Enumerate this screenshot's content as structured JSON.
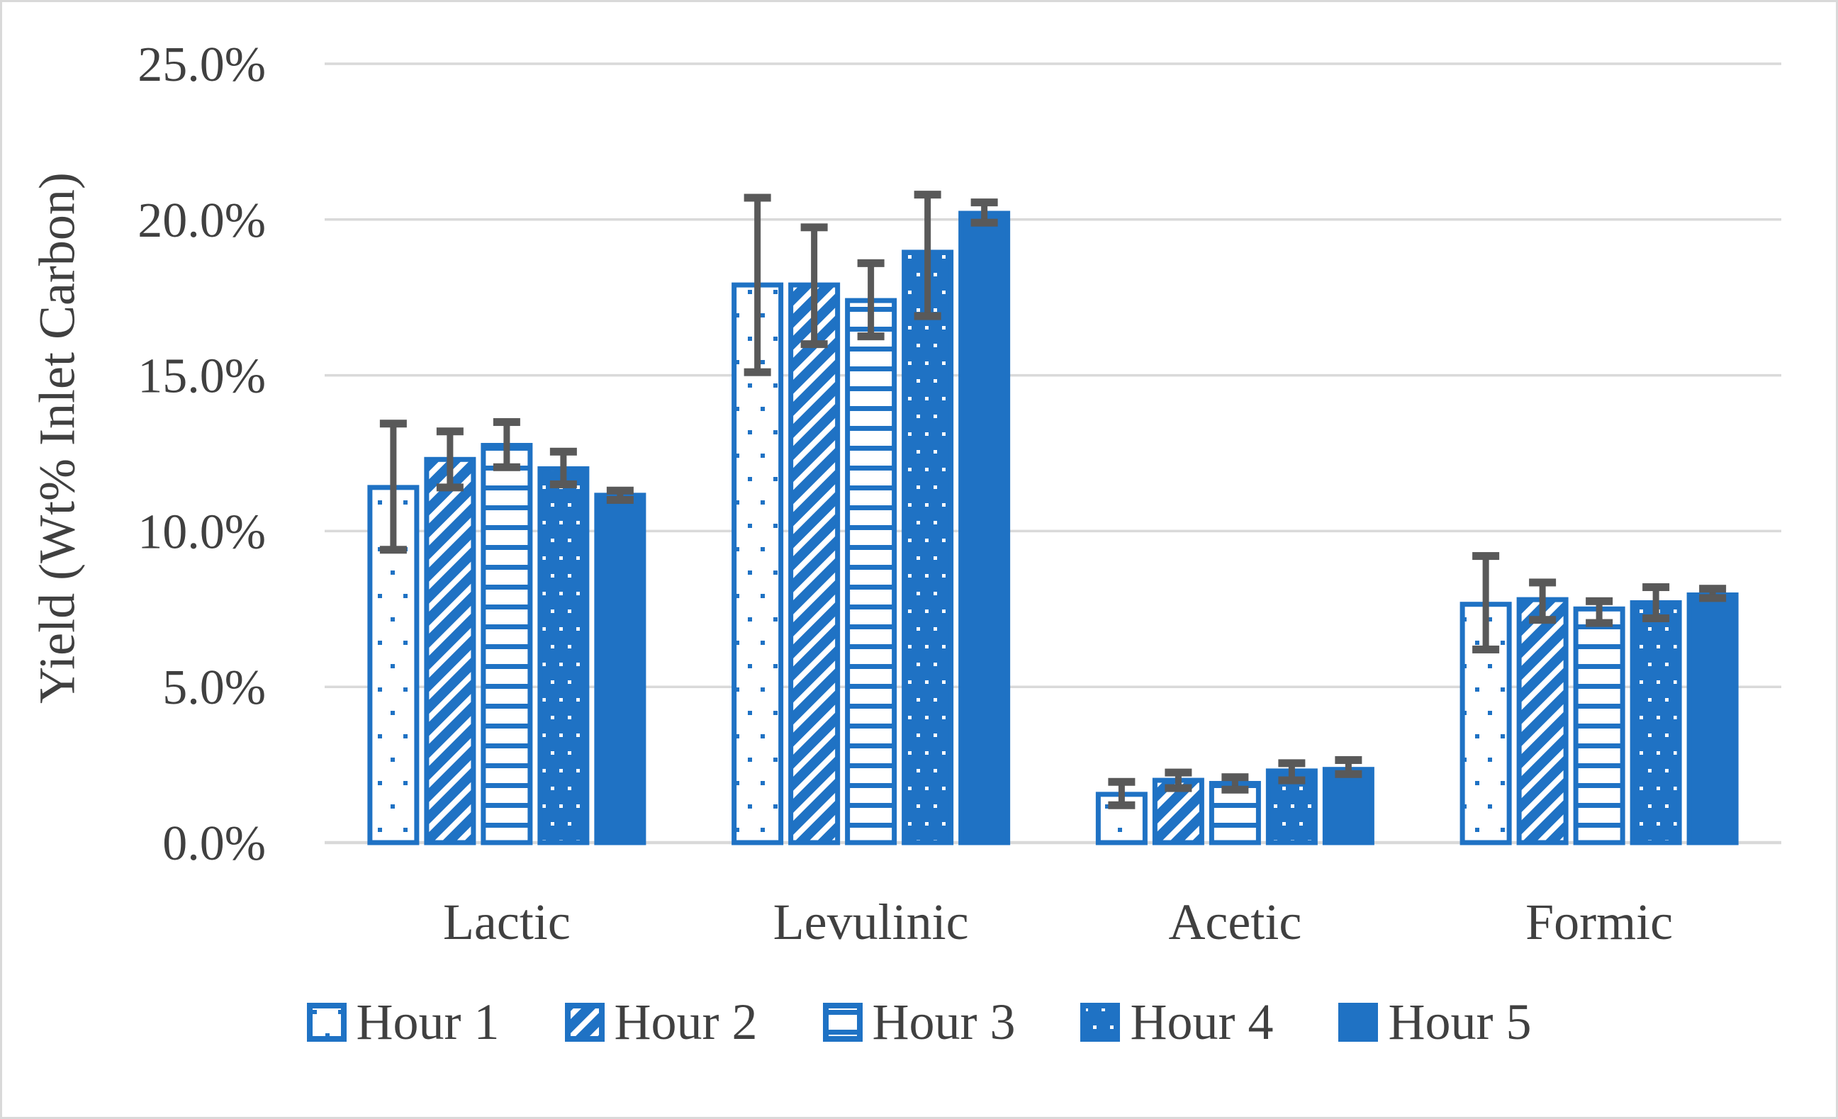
{
  "chart_data": {
    "type": "bar",
    "title": "",
    "xlabel": "",
    "ylabel": "Yield (Wt% Inlet Carbon)",
    "ylim": [
      0,
      25
    ],
    "ytick_step": 5,
    "ytick_labels": [
      "0.0%",
      "5.0%",
      "10.0%",
      "15.0%",
      "20.0%",
      "25.0%"
    ],
    "grid": true,
    "legend_position": "bottom",
    "categories": [
      "Lactic",
      "Levulinic",
      "Acetic",
      "Formic"
    ],
    "series": [
      {
        "name": "Hour 1",
        "pattern": "sparse-dots",
        "values": [
          11.4,
          17.9,
          1.55,
          7.65
        ],
        "err_low": [
          9.4,
          15.1,
          1.2,
          6.2
        ],
        "err_high": [
          13.45,
          20.7,
          1.95,
          9.2
        ]
      },
      {
        "name": "Hour 2",
        "pattern": "diagonal-hatch",
        "values": [
          12.3,
          17.9,
          2.0,
          7.8
        ],
        "err_low": [
          11.4,
          16.0,
          1.75,
          7.15
        ],
        "err_high": [
          13.2,
          19.75,
          2.25,
          8.35
        ]
      },
      {
        "name": "Hour 3",
        "pattern": "horizontal-lines",
        "values": [
          12.75,
          17.4,
          1.9,
          7.5
        ],
        "err_low": [
          12.05,
          16.25,
          1.7,
          7.05
        ],
        "err_high": [
          13.5,
          18.6,
          2.1,
          7.75
        ]
      },
      {
        "name": "Hour 4",
        "pattern": "dense-white-dots",
        "values": [
          12.0,
          18.95,
          2.3,
          7.7
        ],
        "err_low": [
          11.5,
          16.9,
          2.0,
          7.2
        ],
        "err_high": [
          12.55,
          20.8,
          2.55,
          8.2
        ]
      },
      {
        "name": "Hour 5",
        "pattern": "solid",
        "values": [
          11.15,
          20.2,
          2.35,
          7.95
        ],
        "err_low": [
          11.0,
          19.9,
          2.2,
          7.85
        ],
        "err_high": [
          11.3,
          20.55,
          2.65,
          8.15
        ]
      }
    ],
    "colors": {
      "bar_blue": "#1F72C4",
      "error_bar": "#595959",
      "gridline": "#D9D9D9",
      "text": "#404040",
      "background": "#FFFFFF",
      "border": "#D9D9D9"
    }
  }
}
